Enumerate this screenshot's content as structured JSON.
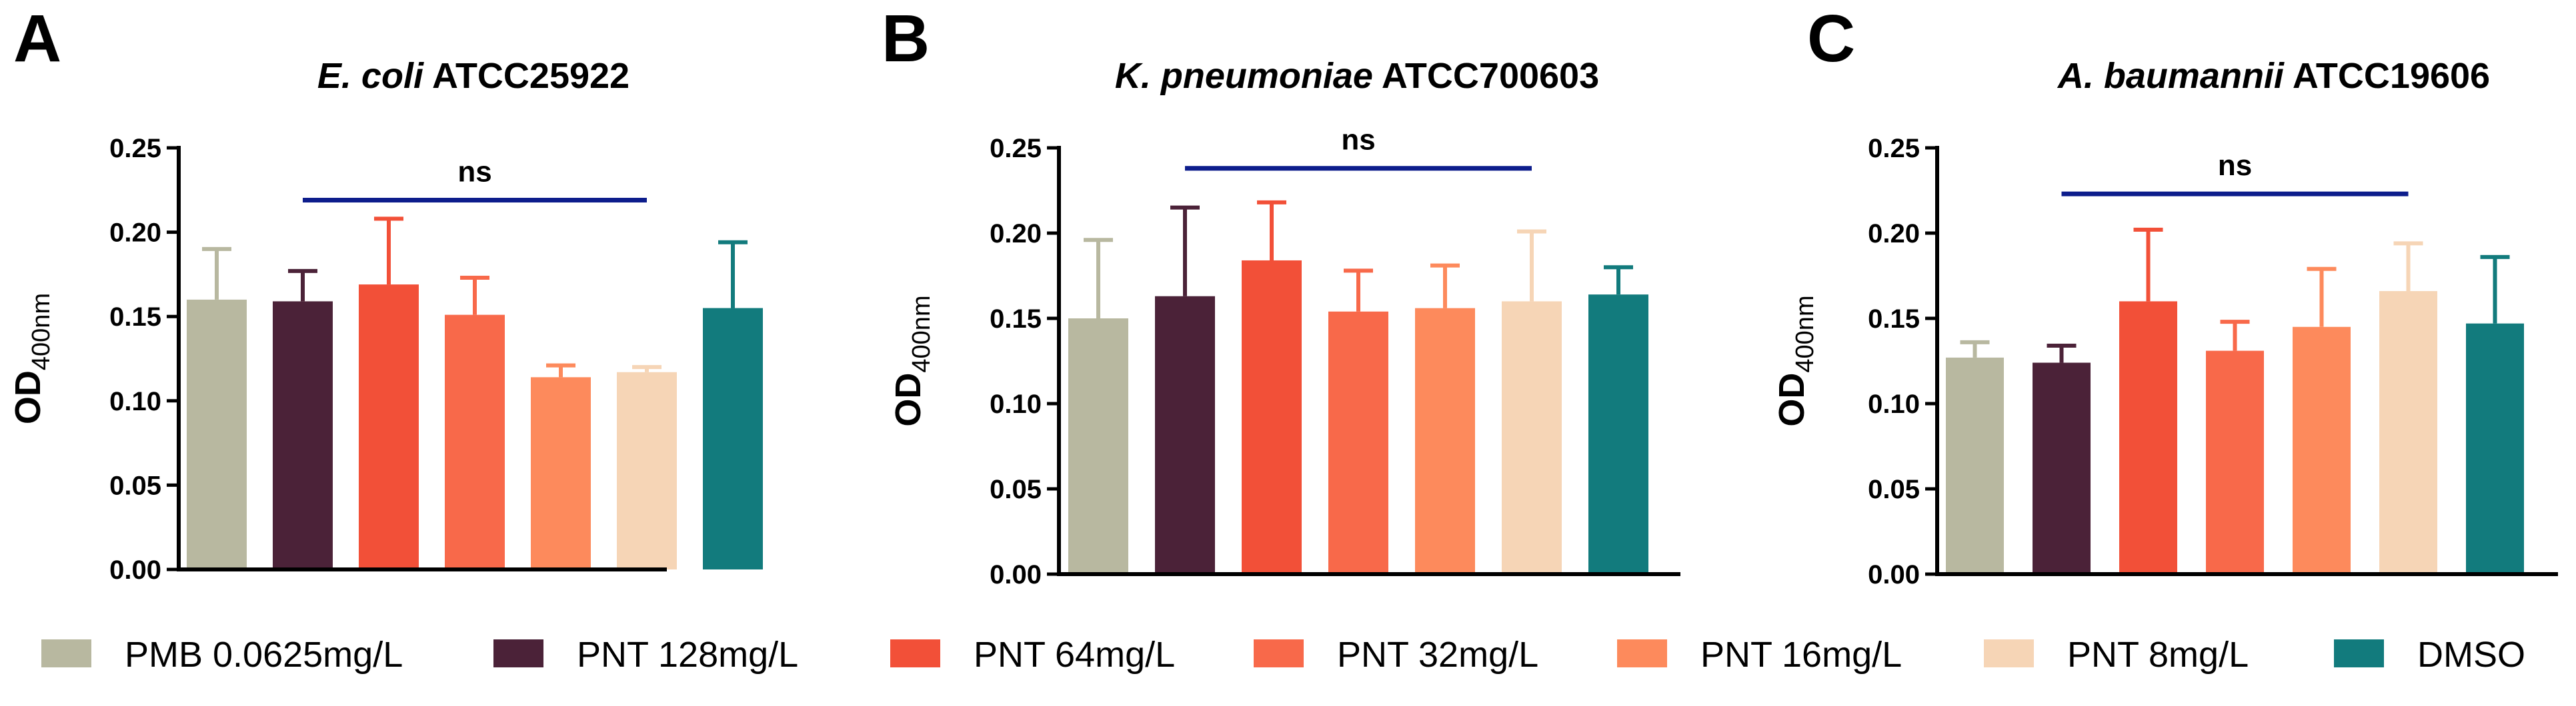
{
  "colors": {
    "PMB 0.0625mg/L": "#b8b8a0",
    "PNT 128mg/L": "#4b2238",
    "PNT 64mg/L": "#f25038",
    "PNT 32mg/L": "#f8694a",
    "PNT 16mg/L": "#fd8a5c",
    "PNT 8mg/L": "#f6d5b6",
    "DMSO": "#127b7d",
    "significance_line": "#0d1d8c"
  },
  "legend": [
    "PMB 0.0625mg/L",
    "PNT 128mg/L",
    "PNT 64mg/L",
    "PNT 32mg/L",
    "PNT 16mg/L",
    "PNT 8mg/L",
    "DMSO"
  ],
  "chart_data": [
    {
      "type": "bar",
      "panel_label": "A",
      "title_italic": "E. coli",
      "title_rest": " ATCC25922",
      "ylabel": "OD",
      "ylabel_sub": "400nm",
      "ylim": [
        0,
        0.25
      ],
      "yticks": [
        "0.00",
        "0.05",
        "0.10",
        "0.15",
        "0.20",
        "0.25"
      ],
      "categories": [
        "PMB 0.0625mg/L",
        "PNT 128mg/L",
        "PNT 64mg/L",
        "PNT 32mg/L",
        "PNT 16mg/L",
        "PNT 8mg/L",
        "DMSO"
      ],
      "values": [
        0.16,
        0.159,
        0.169,
        0.151,
        0.114,
        0.117,
        0.155
      ],
      "errors": [
        0.03,
        0.018,
        0.039,
        0.022,
        0.007,
        0.003,
        0.039
      ],
      "significance": {
        "label": "ns",
        "from_index": 1,
        "to_index": 5,
        "y": 0.219
      }
    },
    {
      "type": "bar",
      "panel_label": "B",
      "title_italic": "K. pneumoniae",
      "title_rest": " ATCC700603",
      "ylabel": "OD",
      "ylabel_sub": "400nm",
      "ylim": [
        0,
        0.25
      ],
      "yticks": [
        "0.00",
        "0.05",
        "0.10",
        "0.15",
        "0.20",
        "0.25"
      ],
      "categories": [
        "PMB 0.0625mg/L",
        "PNT 128mg/L",
        "PNT 64mg/L",
        "PNT 32mg/L",
        "PNT 16mg/L",
        "PNT 8mg/L",
        "DMSO"
      ],
      "values": [
        0.15,
        0.163,
        0.184,
        0.154,
        0.156,
        0.16,
        0.164
      ],
      "errors": [
        0.046,
        0.052,
        0.034,
        0.024,
        0.025,
        0.041,
        0.016
      ],
      "significance": {
        "label": "ns",
        "from_index": 1,
        "to_index": 5,
        "y": 0.238
      }
    },
    {
      "type": "bar",
      "panel_label": "C",
      "title_italic": "A. baumannii",
      "title_rest": " ATCC19606",
      "ylabel": "OD",
      "ylabel_sub": "400nm",
      "ylim": [
        0,
        0.25
      ],
      "yticks": [
        "0.00",
        "0.05",
        "0.10",
        "0.15",
        "0.20",
        "0.25"
      ],
      "categories": [
        "PMB 0.0625mg/L",
        "PNT 128mg/L",
        "PNT 64mg/L",
        "PNT 32mg/L",
        "PNT 16mg/L",
        "PNT 8mg/L",
        "DMSO"
      ],
      "values": [
        0.127,
        0.124,
        0.16,
        0.131,
        0.145,
        0.166,
        0.147
      ],
      "errors": [
        0.009,
        0.01,
        0.042,
        0.017,
        0.034,
        0.028,
        0.039
      ],
      "significance": {
        "label": "ns",
        "from_index": 1,
        "to_index": 5,
        "y": 0.223
      }
    }
  ]
}
